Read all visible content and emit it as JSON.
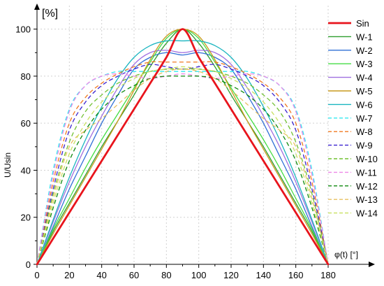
{
  "chart_data": {
    "type": "line",
    "title": "",
    "xlabel": "φ(t) [°]",
    "ylabel": "U/Usin",
    "y_unit_label": "[%]",
    "xlim": [
      0,
      180
    ],
    "ylim": [
      0,
      110
    ],
    "x_ticks": [
      0,
      20,
      40,
      60,
      80,
      100,
      120,
      140,
      160,
      180
    ],
    "y_ticks": [
      0,
      20,
      40,
      60,
      80,
      100
    ],
    "grid": true,
    "legend_position": "right",
    "x": [
      0,
      10,
      20,
      30,
      40,
      50,
      60,
      70,
      80,
      90,
      100,
      110,
      120,
      130,
      140,
      150,
      160,
      170,
      180
    ],
    "series": [
      {
        "name": "Sin",
        "color": "#e8141c",
        "dash": "solid",
        "width": 2.8,
        "values": [
          0,
          11,
          22,
          33,
          44,
          55,
          66,
          77,
          88,
          100,
          88,
          77,
          66,
          55,
          44,
          33,
          22,
          11,
          0
        ]
      },
      {
        "name": "W-1",
        "color": "#2e9e2e",
        "dash": "solid",
        "width": 1.3,
        "values": [
          0,
          14,
          26,
          38,
          50,
          61,
          72,
          84,
          94,
          100,
          94,
          84,
          72,
          61,
          50,
          38,
          26,
          14,
          0
        ]
      },
      {
        "name": "W-2",
        "color": "#2f6fd6",
        "dash": "solid",
        "width": 1.3,
        "values": [
          0,
          16,
          32,
          46,
          60,
          72,
          83,
          88,
          90,
          89,
          90,
          88,
          83,
          72,
          60,
          46,
          32,
          16,
          0
        ]
      },
      {
        "name": "W-3",
        "color": "#44dd44",
        "dash": "solid",
        "width": 1.3,
        "values": [
          0,
          15,
          28,
          41,
          53,
          64,
          75,
          86,
          96,
          100,
          96,
          86,
          75,
          64,
          53,
          41,
          28,
          15,
          0
        ]
      },
      {
        "name": "W-4",
        "color": "#a070e0",
        "dash": "solid",
        "width": 1.3,
        "values": [
          0,
          18,
          35,
          50,
          63,
          75,
          85,
          90,
          91,
          90,
          91,
          90,
          85,
          75,
          63,
          50,
          35,
          18,
          0
        ]
      },
      {
        "name": "W-5",
        "color": "#c99a1e",
        "dash": "solid",
        "width": 1.3,
        "values": [
          0,
          13,
          25,
          37,
          49,
          61,
          74,
          87,
          97,
          100,
          97,
          87,
          74,
          61,
          49,
          37,
          25,
          13,
          0
        ]
      },
      {
        "name": "W-6",
        "color": "#1bb5c0",
        "dash": "solid",
        "width": 1.3,
        "values": [
          0,
          19,
          37,
          53,
          67,
          79,
          88,
          93,
          95,
          95,
          95,
          93,
          88,
          79,
          67,
          53,
          37,
          19,
          0
        ]
      },
      {
        "name": "W-7",
        "color": "#33e8f0",
        "dash": "dashed",
        "width": 1.3,
        "values": [
          0,
          40,
          66,
          76,
          80,
          82,
          82,
          82,
          82,
          82,
          82,
          82,
          82,
          82,
          80,
          76,
          66,
          40,
          0
        ]
      },
      {
        "name": "W-8",
        "color": "#f07a20",
        "dash": "dashed",
        "width": 1.3,
        "values": [
          0,
          35,
          60,
          71,
          77,
          81,
          84,
          86,
          86,
          86,
          86,
          86,
          84,
          81,
          77,
          71,
          60,
          35,
          0
        ]
      },
      {
        "name": "W-9",
        "color": "#3b22d0",
        "dash": "dashed",
        "width": 1.3,
        "values": [
          0,
          32,
          57,
          69,
          76,
          80,
          83,
          85,
          84,
          83,
          84,
          85,
          83,
          80,
          76,
          69,
          57,
          32,
          0
        ]
      },
      {
        "name": "W-10",
        "color": "#70c030",
        "dash": "dashed",
        "width": 1.3,
        "values": [
          0,
          30,
          52,
          65,
          72,
          77,
          80,
          82,
          83,
          83,
          83,
          82,
          80,
          77,
          72,
          65,
          52,
          30,
          0
        ]
      },
      {
        "name": "W-11",
        "color": "#ee88e8",
        "dash": "dashed",
        "width": 1.3,
        "values": [
          0,
          38,
          65,
          76,
          80,
          81,
          80,
          79,
          80,
          81,
          80,
          79,
          80,
          81,
          80,
          76,
          65,
          38,
          0
        ]
      },
      {
        "name": "W-12",
        "color": "#0f8a0f",
        "dash": "dashed",
        "width": 1.3,
        "values": [
          0,
          24,
          44,
          57,
          66,
          72,
          76,
          79,
          80,
          80,
          80,
          79,
          76,
          72,
          66,
          57,
          44,
          24,
          0
        ]
      },
      {
        "name": "W-13",
        "color": "#e8c060",
        "dash": "dashed",
        "width": 1.3,
        "values": [
          0,
          28,
          50,
          57,
          62,
          68,
          74,
          79,
          82,
          83,
          82,
          79,
          74,
          68,
          62,
          57,
          50,
          28,
          0
        ]
      },
      {
        "name": "W-14",
        "color": "#c8e060",
        "dash": "dashed",
        "width": 1.3,
        "values": [
          0,
          26,
          47,
          60,
          69,
          75,
          79,
          82,
          83,
          84,
          83,
          82,
          79,
          75,
          69,
          60,
          47,
          26,
          0
        ]
      }
    ]
  }
}
